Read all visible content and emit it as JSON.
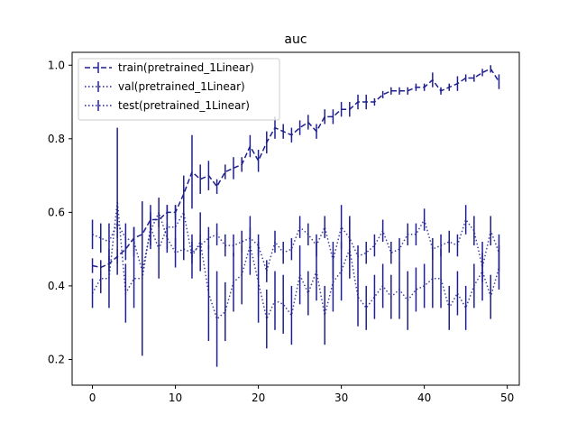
{
  "chart_data": {
    "type": "line",
    "title": "auc",
    "xlabel": "",
    "ylabel": "",
    "xlim": [
      -2.45,
      51.45
    ],
    "ylim": [
      0.13,
      1.035
    ],
    "xticks": [
      0,
      10,
      20,
      30,
      40,
      50
    ],
    "yticks": [
      0.2,
      0.4,
      0.6,
      0.8,
      1.0
    ],
    "ytick_labels": [
      "0.2",
      "0.4",
      "0.6",
      "0.8",
      "1.0"
    ],
    "grid": false,
    "legend_position": "top-left",
    "color": "#1f1f8f",
    "x": [
      0,
      1,
      2,
      3,
      4,
      5,
      6,
      7,
      8,
      9,
      10,
      11,
      12,
      13,
      14,
      15,
      16,
      17,
      18,
      19,
      20,
      21,
      22,
      23,
      24,
      25,
      26,
      27,
      28,
      29,
      30,
      31,
      32,
      33,
      34,
      35,
      36,
      37,
      38,
      39,
      40,
      41,
      42,
      43,
      44,
      45,
      46,
      47,
      48,
      49
    ],
    "series": [
      {
        "name": "train(pretrained_1Linear)",
        "style": "dashed",
        "values": [
          0.455,
          0.45,
          0.46,
          0.48,
          0.5,
          0.53,
          0.54,
          0.58,
          0.58,
          0.6,
          0.6,
          0.65,
          0.71,
          0.69,
          0.7,
          0.67,
          0.71,
          0.72,
          0.73,
          0.78,
          0.74,
          0.79,
          0.83,
          0.82,
          0.81,
          0.83,
          0.845,
          0.82,
          0.86,
          0.86,
          0.88,
          0.88,
          0.9,
          0.9,
          0.9,
          0.92,
          0.93,
          0.93,
          0.93,
          0.94,
          0.94,
          0.96,
          0.93,
          0.94,
          0.95,
          0.965,
          0.965,
          0.98,
          0.99,
          0.955
        ],
        "errors": [
          0.02,
          0.02,
          0.02,
          0.02,
          0.03,
          0.03,
          0.02,
          0.02,
          0.02,
          0.02,
          0.02,
          0.02,
          0.1,
          0.04,
          0.04,
          0.02,
          0.02,
          0.03,
          0.02,
          0.03,
          0.03,
          0.03,
          0.03,
          0.02,
          0.02,
          0.02,
          0.02,
          0.02,
          0.02,
          0.02,
          0.02,
          0.02,
          0.02,
          0.02,
          0.01,
          0.01,
          0.01,
          0.01,
          0.01,
          0.01,
          0.01,
          0.02,
          0.01,
          0.01,
          0.02,
          0.01,
          0.01,
          0.01,
          0.01,
          0.02
        ]
      },
      {
        "name": "val(pretrained_1Linear)",
        "style": "dotted",
        "values": [
          0.54,
          0.53,
          0.52,
          0.57,
          0.53,
          0.52,
          0.44,
          0.55,
          0.6,
          0.53,
          0.49,
          0.5,
          0.49,
          0.51,
          0.53,
          0.54,
          0.51,
          0.51,
          0.52,
          0.53,
          0.51,
          0.44,
          0.52,
          0.49,
          0.5,
          0.56,
          0.54,
          0.51,
          0.56,
          0.47,
          0.56,
          0.53,
          0.48,
          0.49,
          0.51,
          0.55,
          0.49,
          0.5,
          0.54,
          0.54,
          0.58,
          0.5,
          0.51,
          0.52,
          0.51,
          0.58,
          0.55,
          0.45,
          0.55,
          0.49
        ],
        "errors": [
          0.04,
          0.04,
          0.05,
          0.04,
          0.04,
          0.04,
          0.05,
          0.04,
          0.04,
          0.04,
          0.04,
          0.03,
          0.03,
          0.03,
          0.03,
          0.03,
          0.03,
          0.03,
          0.03,
          0.03,
          0.03,
          0.03,
          0.03,
          0.03,
          0.03,
          0.03,
          0.03,
          0.03,
          0.03,
          0.05,
          0.06,
          0.06,
          0.03,
          0.03,
          0.03,
          0.03,
          0.03,
          0.03,
          0.03,
          0.03,
          0.03,
          0.03,
          0.03,
          0.03,
          0.03,
          0.04,
          0.04,
          0.04,
          0.04,
          0.05
        ]
      },
      {
        "name": "test(pretrained_1Linear)",
        "style": "dotted",
        "values": [
          0.38,
          0.42,
          0.42,
          0.63,
          0.38,
          0.42,
          0.42,
          0.56,
          0.5,
          0.56,
          0.56,
          0.6,
          0.48,
          0.52,
          0.38,
          0.31,
          0.33,
          0.41,
          0.43,
          0.51,
          0.41,
          0.31,
          0.36,
          0.35,
          0.32,
          0.43,
          0.38,
          0.44,
          0.32,
          0.41,
          0.44,
          0.5,
          0.37,
          0.34,
          0.37,
          0.4,
          0.37,
          0.39,
          0.36,
          0.39,
          0.4,
          0.42,
          0.42,
          0.34,
          0.38,
          0.34,
          0.4,
          0.44,
          0.37,
          0.45
        ],
        "errors": [
          0.04,
          0.04,
          0.08,
          0.2,
          0.08,
          0.08,
          0.21,
          0.06,
          0.08,
          0.06,
          0.06,
          0.1,
          0.06,
          0.08,
          0.13,
          0.13,
          0.08,
          0.08,
          0.08,
          0.08,
          0.11,
          0.08,
          0.08,
          0.08,
          0.08,
          0.08,
          0.06,
          0.08,
          0.08,
          0.08,
          0.08,
          0.08,
          0.08,
          0.06,
          0.06,
          0.06,
          0.06,
          0.08,
          0.08,
          0.06,
          0.06,
          0.08,
          0.08,
          0.06,
          0.06,
          0.06,
          0.06,
          0.08,
          0.06,
          0.06
        ]
      }
    ]
  }
}
